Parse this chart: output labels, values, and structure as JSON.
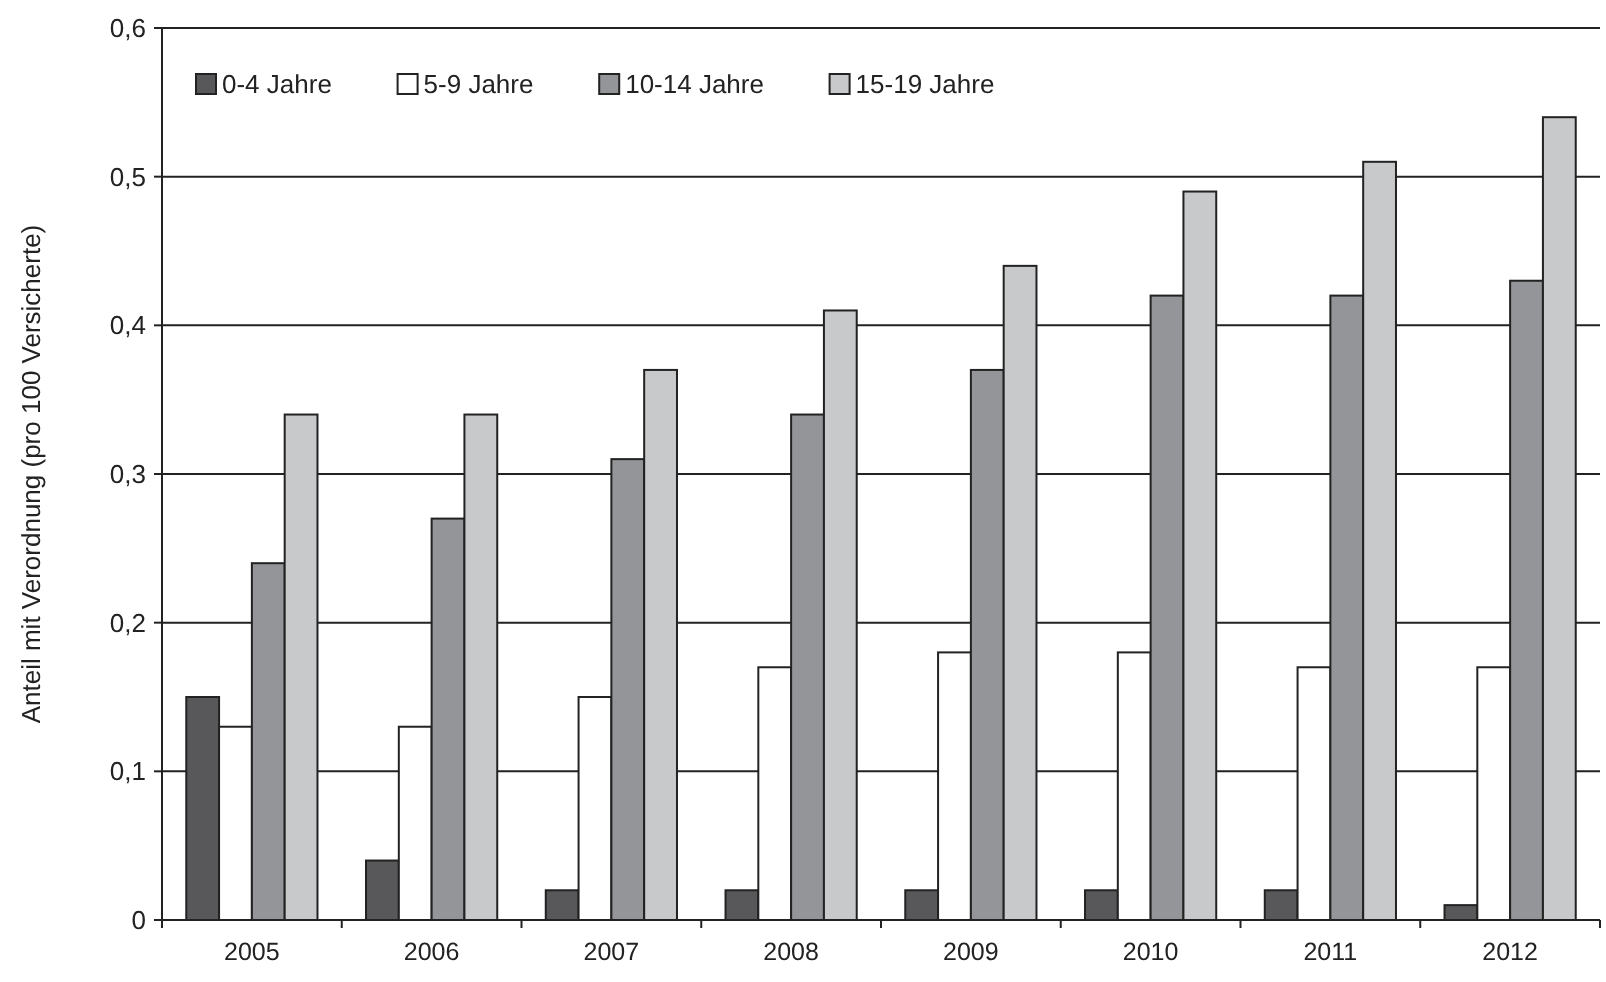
{
  "chart_data": {
    "type": "bar",
    "ylabel": "Anteil mit Verordnung (pro 100 Versicherte)",
    "categories": [
      "2005",
      "2006",
      "2007",
      "2008",
      "2009",
      "2010",
      "2011",
      "2012"
    ],
    "series": [
      {
        "name": "0-4 Jahre",
        "color": "#58585a",
        "values": [
          0.15,
          0.04,
          0.02,
          0.02,
          0.02,
          0.02,
          0.02,
          0.01
        ]
      },
      {
        "name": "5-9 Jahre",
        "color": "#ffffff",
        "values": [
          0.13,
          0.13,
          0.15,
          0.17,
          0.18,
          0.18,
          0.17,
          0.17
        ]
      },
      {
        "name": "10-14 Jahre",
        "color": "#949598",
        "values": [
          0.24,
          0.27,
          0.31,
          0.34,
          0.37,
          0.42,
          0.42,
          0.43
        ]
      },
      {
        "name": "15-19 Jahre",
        "color": "#c8c9cb",
        "values": [
          0.34,
          0.34,
          0.37,
          0.41,
          0.44,
          0.49,
          0.51,
          0.54
        ]
      }
    ],
    "ylim": [
      0,
      0.6
    ],
    "yticks": [
      0,
      {
        "value": 0.1,
        "label": "0,1"
      },
      {
        "value": 0.2,
        "label": "0,2"
      },
      {
        "value": 0.3,
        "label": "0,3"
      },
      {
        "value": 0.4,
        "label": "0,4"
      },
      {
        "value": 0.5,
        "label": "0,5"
      },
      {
        "value": 0.6,
        "label": "0,6"
      }
    ],
    "grid": "y",
    "legend": "top left"
  }
}
